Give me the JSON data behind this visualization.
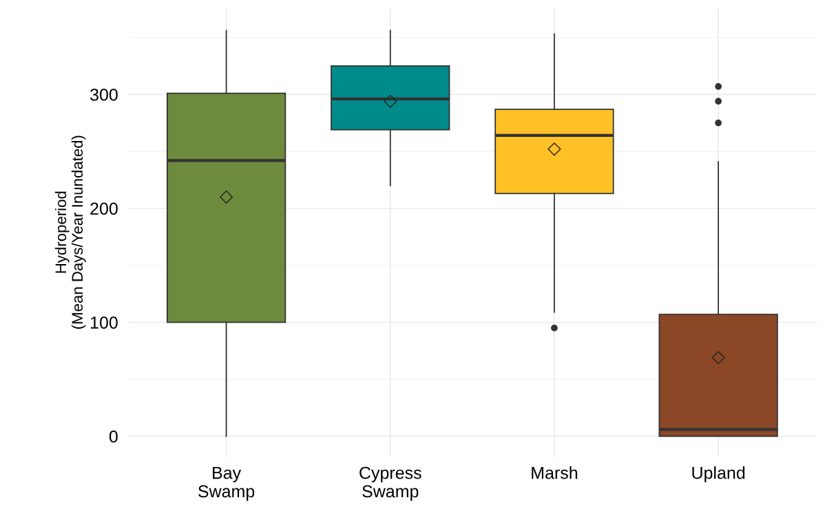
{
  "chart_data": {
    "type": "box",
    "ylabel": "Hydroperiod\n(Mean Days/Year Inundated)",
    "categories": [
      "Bay\nSwamp",
      "Cypress\nSwamp",
      "Marsh",
      "Upland"
    ],
    "colors": [
      "#6e8b3d",
      "#008b8b",
      "#ffc125",
      "#8b4726"
    ],
    "boxes": [
      {
        "low": 0,
        "q1": 100,
        "median": 242,
        "q3": 301,
        "high": 356,
        "mean": 210
      },
      {
        "low": 220,
        "q1": 269,
        "median": 296,
        "q3": 325,
        "high": 356,
        "mean": 294
      },
      {
        "low": 109,
        "q1": 213,
        "median": 264,
        "q3": 287,
        "high": 353,
        "mean": 252,
        "outliers": [
          95
        ]
      },
      {
        "low": 0,
        "q1": 0,
        "median": 6,
        "q3": 107,
        "high": 241,
        "mean": 69,
        "outliers": [
          307,
          294,
          275
        ]
      }
    ],
    "ylim": [
      -18,
      376
    ],
    "yticks": [
      0,
      100,
      200,
      300
    ],
    "grid": true,
    "legend": false
  }
}
